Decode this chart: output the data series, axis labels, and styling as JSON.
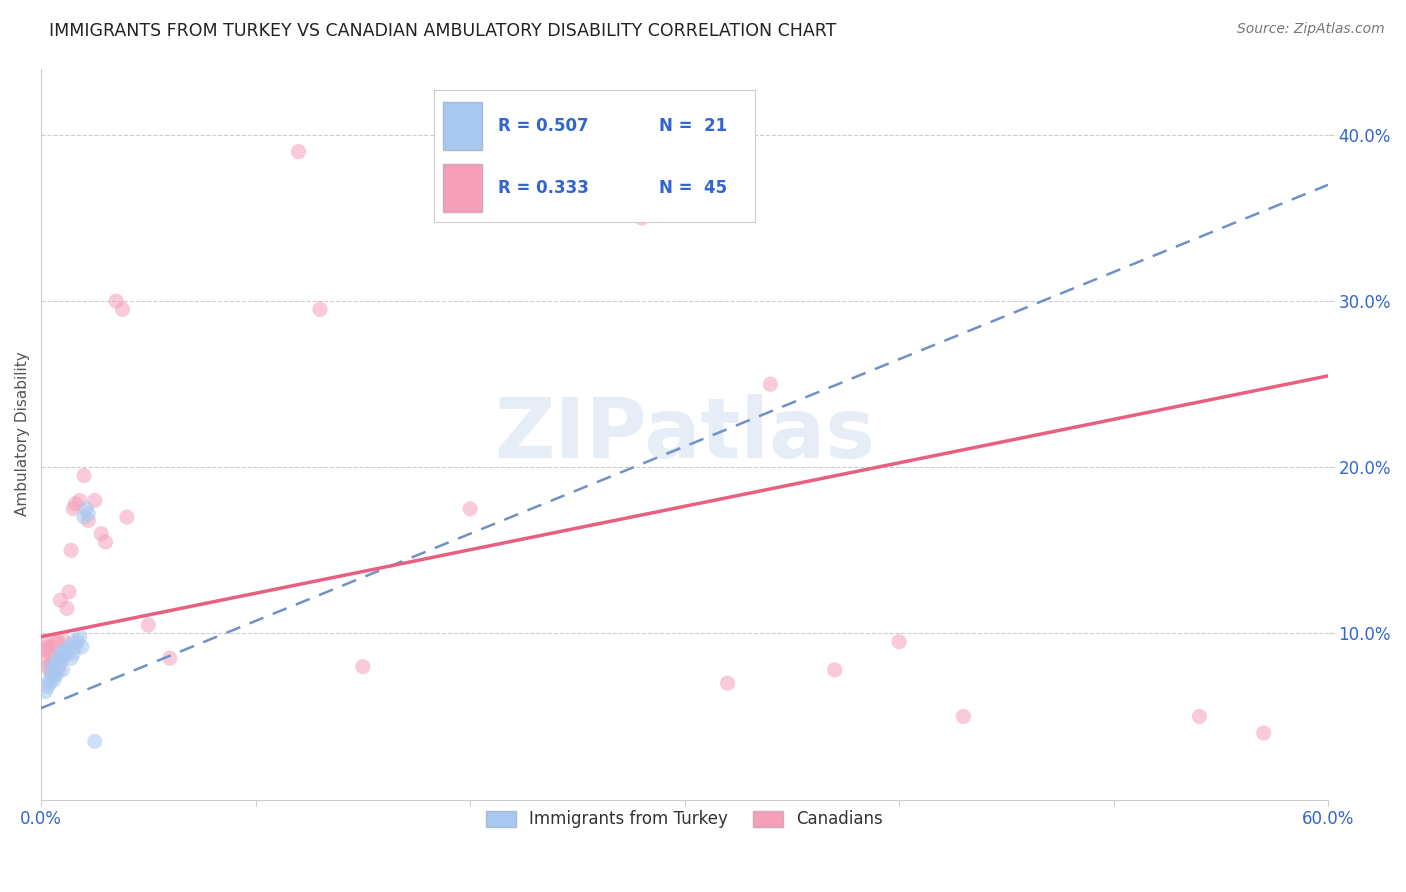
{
  "title": "IMMIGRANTS FROM TURKEY VS CANADIAN AMBULATORY DISABILITY CORRELATION CHART",
  "source": "Source: ZipAtlas.com",
  "ylabel": "Ambulatory Disability",
  "xlim": [
    0.0,
    0.6
  ],
  "ylim": [
    0.0,
    0.44
  ],
  "xticks": [
    0.0,
    0.1,
    0.2,
    0.3,
    0.4,
    0.5,
    0.6
  ],
  "yticks": [
    0.1,
    0.2,
    0.3,
    0.4
  ],
  "ytick_labels": [
    "10.0%",
    "20.0%",
    "30.0%",
    "40.0%"
  ],
  "xtick_labels": [
    "0.0%",
    "",
    "",
    "",
    "",
    "",
    "60.0%"
  ],
  "grid_color": "#cccccc",
  "background_color": "#ffffff",
  "title_fontsize": 12.5,
  "watermark": "ZIPatlas",
  "blue_scatter_x": [
    0.002,
    0.003,
    0.004,
    0.004,
    0.005,
    0.005,
    0.006,
    0.006,
    0.007,
    0.007,
    0.008,
    0.008,
    0.009,
    0.009,
    0.01,
    0.01,
    0.011,
    0.012,
    0.013,
    0.014,
    0.015,
    0.015,
    0.016,
    0.017,
    0.018,
    0.019,
    0.02,
    0.021,
    0.022,
    0.025
  ],
  "blue_scatter_y": [
    0.065,
    0.068,
    0.072,
    0.07,
    0.075,
    0.08,
    0.072,
    0.078,
    0.082,
    0.075,
    0.08,
    0.085,
    0.083,
    0.088,
    0.078,
    0.086,
    0.09,
    0.088,
    0.092,
    0.085,
    0.095,
    0.088,
    0.092,
    0.095,
    0.098,
    0.092,
    0.17,
    0.175,
    0.172,
    0.035
  ],
  "pink_scatter_x": [
    0.001,
    0.002,
    0.002,
    0.003,
    0.003,
    0.004,
    0.004,
    0.005,
    0.005,
    0.006,
    0.006,
    0.007,
    0.008,
    0.008,
    0.009,
    0.01,
    0.011,
    0.012,
    0.013,
    0.014,
    0.015,
    0.016,
    0.018,
    0.02,
    0.022,
    0.025,
    0.028,
    0.03,
    0.035,
    0.038,
    0.04,
    0.05,
    0.06,
    0.12,
    0.13,
    0.15,
    0.2,
    0.28,
    0.32,
    0.34,
    0.37,
    0.4,
    0.43,
    0.54,
    0.57
  ],
  "pink_scatter_y": [
    0.085,
    0.09,
    0.095,
    0.08,
    0.092,
    0.078,
    0.088,
    0.082,
    0.092,
    0.075,
    0.085,
    0.095,
    0.078,
    0.095,
    0.12,
    0.085,
    0.095,
    0.115,
    0.125,
    0.15,
    0.175,
    0.178,
    0.18,
    0.195,
    0.168,
    0.18,
    0.16,
    0.155,
    0.3,
    0.295,
    0.17,
    0.105,
    0.085,
    0.39,
    0.295,
    0.08,
    0.175,
    0.35,
    0.07,
    0.25,
    0.078,
    0.095,
    0.05,
    0.05,
    0.04
  ],
  "blue_line_x0": 0.0,
  "blue_line_x1": 0.6,
  "blue_line_y0": 0.055,
  "blue_line_y1": 0.37,
  "pink_line_x0": 0.0,
  "pink_line_x1": 0.6,
  "pink_line_y0": 0.098,
  "pink_line_y1": 0.255,
  "blue_color": "#a8c8f0",
  "blue_line_color": "#7090c8",
  "pink_color": "#f5a0b8",
  "pink_line_color": "#e86080",
  "dot_size": 120,
  "dot_alpha": 0.55,
  "legend_label_blue": "Immigrants from Turkey",
  "legend_label_pink": "Canadians"
}
